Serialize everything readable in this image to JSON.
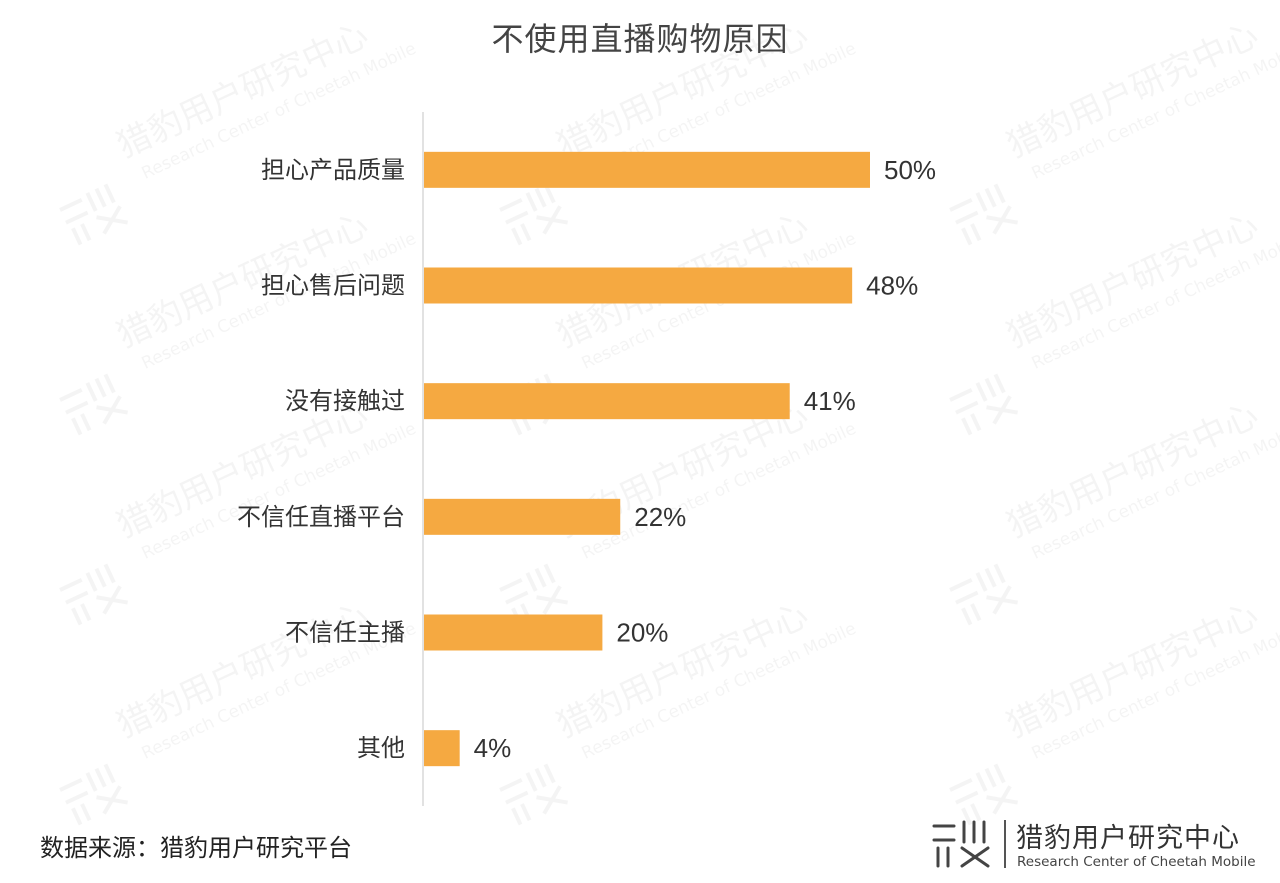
{
  "chart_data": {
    "type": "bar",
    "orientation": "horizontal",
    "title": "不使用直播购物原因",
    "categories": [
      "担心产品质量",
      "担心售后问题",
      "没有接触过",
      "不信任直播平台",
      "不信任主播",
      "其他"
    ],
    "values": [
      50,
      48,
      41,
      22,
      20,
      4
    ],
    "value_labels": [
      "50%",
      "48%",
      "41%",
      "22%",
      "20%",
      "4%"
    ],
    "unit": "%",
    "xlim": [
      0,
      100
    ],
    "grid": false,
    "legend": "none",
    "bar_color": "#F5A941"
  },
  "footer": {
    "source": "数据来源：猎豹用户研究平台",
    "brand_name": "猎豹用户研究中心",
    "brand_sub": "Research Center of Cheetah Mobile"
  },
  "watermark": {
    "cn": "猎豹用户研究中心",
    "en": "Research Center of Cheetah Mobile"
  },
  "icons": {
    "brand_logo": "cheetah-research-logo-icon"
  }
}
